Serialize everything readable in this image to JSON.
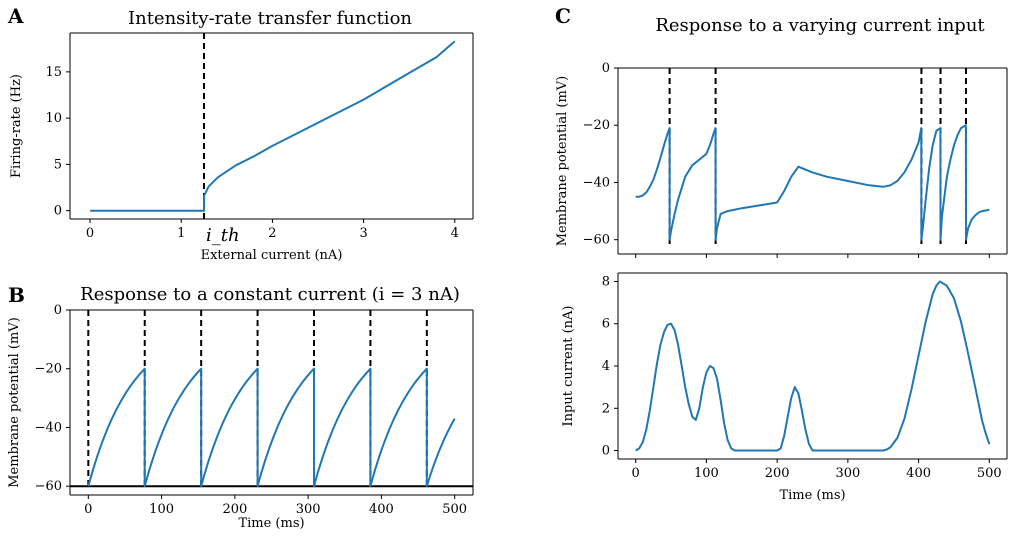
{
  "panel_letters": [
    "A",
    "B",
    "C"
  ],
  "chart_data": [
    {
      "id": "A",
      "type": "line",
      "title": "Intensity-rate transfer function",
      "xlabel": "External current (nA)",
      "ylabel": "Firing-rate (Hz)",
      "xlim": [
        -0.22,
        4.2
      ],
      "ylim": [
        -0.9,
        19.2
      ],
      "xticks": [
        0,
        1,
        2,
        3,
        4
      ],
      "yticks": [
        0,
        5,
        10,
        15
      ],
      "annotation": "i_th",
      "threshold": 1.25,
      "series": [
        {
          "x": [
            0,
            1.25,
            1.25,
            1.3,
            1.4,
            1.6,
            1.8,
            2.0,
            2.3,
            2.6,
            3.0,
            3.4,
            3.8,
            4.0
          ],
          "y": [
            0,
            0,
            1.6,
            2.6,
            3.6,
            4.9,
            5.9,
            7.0,
            8.5,
            10.0,
            12.0,
            14.3,
            16.6,
            18.3
          ]
        }
      ]
    },
    {
      "id": "B",
      "type": "line",
      "title": "Response to a constant current (i = 3 nA)",
      "xlabel": "Time (ms)",
      "ylabel": "Membrane potential (mV)",
      "xlim": [
        -25,
        525
      ],
      "ylim": [
        -63,
        0
      ],
      "xticks": [
        0,
        100,
        200,
        300,
        400,
        500
      ],
      "yticks": [
        0,
        -20,
        -40,
        -60
      ],
      "spike_times": [
        0,
        77,
        154,
        231,
        308,
        385,
        462
      ],
      "resting": -60,
      "v_reset": -60,
      "v_peak": -20,
      "tail": {
        "t_end": 500,
        "v_end": -37
      }
    },
    {
      "id": "C_top",
      "type": "line",
      "title": "Response to a varying current input",
      "xlabel": "",
      "ylabel": "Membrane potential (mV)",
      "xlim": [
        -25,
        525
      ],
      "ylim": [
        -65,
        0
      ],
      "xticks": [
        0,
        100,
        200,
        300,
        400,
        500
      ],
      "yticks": [
        0,
        -20,
        -40,
        -60
      ],
      "spike_times": [
        48,
        113,
        404,
        431,
        467
      ],
      "series": [
        {
          "x": [
            0,
            5,
            10,
            15,
            20,
            25,
            30,
            35,
            40,
            45,
            47.9,
            48,
            50,
            55,
            60,
            70,
            80,
            90,
            100,
            105,
            110,
            112.9,
            113,
            115,
            120,
            130,
            150,
            175,
            200,
            210,
            220,
            230,
            240,
            250,
            270,
            300,
            330,
            350,
            360,
            370,
            380,
            390,
            400,
            403.9,
            404,
            406,
            410,
            415,
            420,
            425,
            430.9,
            431,
            433,
            440,
            445,
            450,
            455,
            460,
            466.9,
            467,
            470,
            475,
            480,
            485,
            490,
            495,
            500
          ],
          "y": [
            -45,
            -45,
            -44.5,
            -43.5,
            -41.5,
            -39,
            -35.5,
            -31.5,
            -27,
            -23,
            -21,
            -60,
            -57,
            -51,
            -46,
            -38,
            -34,
            -32,
            -30,
            -27,
            -23,
            -21,
            -60,
            -56,
            -51,
            -50,
            -49,
            -48,
            -47,
            -43,
            -38,
            -34.5,
            -35.5,
            -36.5,
            -38,
            -39.5,
            -41,
            -41.5,
            -41,
            -39.5,
            -36.5,
            -32,
            -26,
            -21,
            -60,
            -56,
            -46,
            -35,
            -27,
            -22,
            -21,
            -60,
            -52,
            -38,
            -32,
            -27,
            -23.5,
            -21,
            -20,
            -60,
            -56,
            -53,
            -51.5,
            -50.5,
            -50,
            -49.8,
            -49.5
          ]
        }
      ]
    },
    {
      "id": "C_bottom",
      "type": "line",
      "xlabel": "Time (ms)",
      "ylabel": "Input current (nA)",
      "xlim": [
        -25,
        525
      ],
      "ylim": [
        -0.4,
        8.4
      ],
      "xticks": [
        0,
        100,
        200,
        300,
        400,
        500
      ],
      "yticks": [
        0,
        2,
        4,
        6,
        8
      ],
      "series": [
        {
          "x": [
            0,
            5,
            10,
            15,
            20,
            25,
            30,
            35,
            40,
            45,
            50,
            55,
            60,
            65,
            70,
            75,
            80,
            85,
            90,
            95,
            100,
            105,
            110,
            115,
            120,
            125,
            130,
            135,
            140,
            150,
            175,
            200,
            205,
            210,
            215,
            220,
            225,
            230,
            235,
            240,
            245,
            250,
            260,
            300,
            350,
            355,
            360,
            370,
            380,
            390,
            400,
            410,
            420,
            425,
            430,
            440,
            450,
            460,
            470,
            480,
            490,
            495,
            500
          ],
          "y": [
            0,
            0.1,
            0.4,
            1.0,
            1.9,
            3.0,
            4.1,
            5.0,
            5.6,
            5.95,
            6.0,
            5.7,
            5.0,
            4.0,
            3.0,
            2.2,
            1.6,
            1.45,
            2.0,
            3.0,
            3.7,
            4.0,
            3.9,
            3.4,
            2.4,
            1.3,
            0.5,
            0.1,
            0,
            0,
            0,
            0,
            0.1,
            0.7,
            1.6,
            2.5,
            3.0,
            2.7,
            1.9,
            1.0,
            0.3,
            0,
            0,
            0,
            0,
            0.05,
            0.15,
            0.6,
            1.5,
            2.9,
            4.5,
            6.1,
            7.4,
            7.8,
            8.0,
            7.8,
            7.2,
            6.1,
            4.6,
            3.0,
            1.4,
            0.8,
            0.3
          ]
        }
      ]
    }
  ]
}
